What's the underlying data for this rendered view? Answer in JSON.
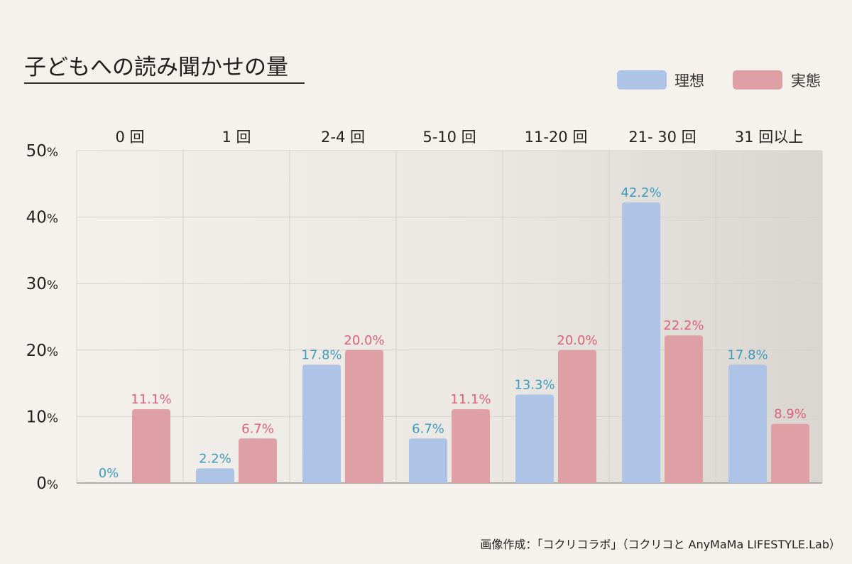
{
  "chart_data": {
    "type": "bar",
    "title": "子どもへの読み聞かせの量",
    "categories": [
      "0 回",
      "1 回",
      "2-4 回",
      "5-10 回",
      "11-20 回",
      "21- 30 回",
      "31 回以上"
    ],
    "series": [
      {
        "name": "理想",
        "values": [
          0,
          2.2,
          17.8,
          6.7,
          13.3,
          42.2,
          17.8
        ],
        "labels": [
          "0%",
          "2.2%",
          "17.8%",
          "6.7%",
          "13.3%",
          "42.2%",
          "17.8%"
        ],
        "color": "#aec4e6",
        "label_color": "#3b9cbf"
      },
      {
        "name": "実態",
        "values": [
          11.1,
          6.7,
          20.0,
          11.1,
          20.0,
          22.2,
          8.9
        ],
        "labels": [
          "11.1%",
          "6.7%",
          "20.0%",
          "11.1%",
          "20.0%",
          "22.2%",
          "8.9%"
        ],
        "color": "#dea0a4",
        "label_color": "#e0607a"
      }
    ],
    "y_ticks": [
      {
        "num": "0",
        "unit": "%"
      },
      {
        "num": "10",
        "unit": "%"
      },
      {
        "num": "20",
        "unit": "%"
      },
      {
        "num": "30",
        "unit": "%"
      },
      {
        "num": "40",
        "unit": "%"
      },
      {
        "num": "50",
        "unit": "%"
      }
    ],
    "ylim": [
      0,
      50
    ],
    "grid": true,
    "legend_position": "top-right",
    "xlabel": "",
    "ylabel": ""
  },
  "credit": "画像作成：「コクリコラボ」（コクリコと AnyMaMa LIFESTYLE.Lab）"
}
